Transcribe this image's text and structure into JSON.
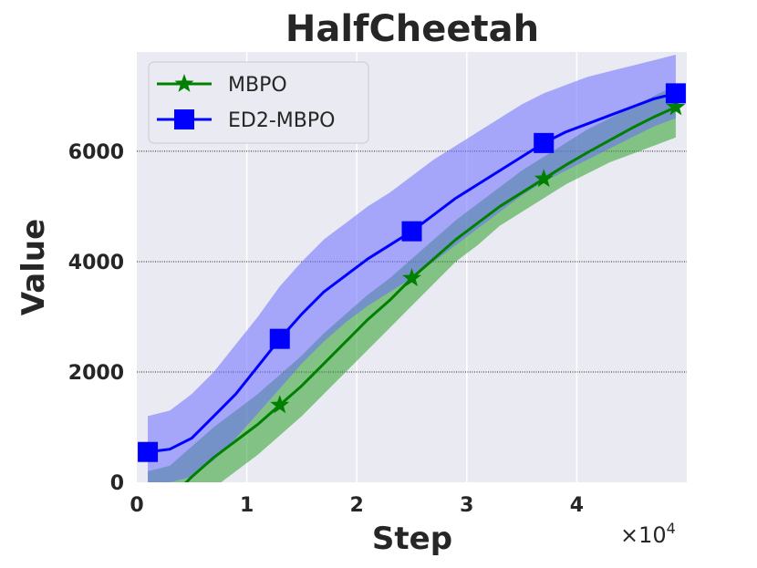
{
  "chart_data": {
    "type": "line",
    "title": "HalfCheetah",
    "xlabel": "Step",
    "ylabel": "Value",
    "x_multiplier_label": "×10",
    "x_multiplier_exp": "4",
    "xlim": [
      0,
      5.0
    ],
    "ylim": [
      0,
      7800
    ],
    "x_ticks": [
      0,
      1,
      2,
      3,
      4
    ],
    "x_tick_labels": [
      "0",
      "1",
      "2",
      "3",
      "4"
    ],
    "y_ticks": [
      0,
      2000,
      4000,
      6000
    ],
    "y_tick_labels": [
      "0",
      "2000",
      "4000",
      "6000"
    ],
    "grid": true,
    "legend_position": "top-left",
    "series": [
      {
        "name": "MBPO",
        "color": "#008000",
        "band_color": "#2ca02c",
        "marker": "star",
        "x": [
          0.1,
          0.3,
          0.5,
          0.7,
          0.9,
          1.1,
          1.3,
          1.5,
          1.7,
          1.9,
          2.1,
          2.3,
          2.5,
          2.7,
          2.9,
          3.1,
          3.3,
          3.5,
          3.7,
          3.9,
          4.1,
          4.3,
          4.5,
          4.7,
          4.9
        ],
        "mean": [
          -700,
          -300,
          100,
          450,
          750,
          1050,
          1400,
          1750,
          2150,
          2550,
          2950,
          3300,
          3700,
          4050,
          4400,
          4700,
          5000,
          5250,
          5500,
          5750,
          5980,
          6200,
          6420,
          6620,
          6800
        ],
        "upper": [
          200,
          300,
          650,
          1000,
          1300,
          1600,
          1950,
          2300,
          2700,
          3050,
          3400,
          3700,
          4050,
          4400,
          4750,
          5050,
          5350,
          5650,
          5900,
          6150,
          6400,
          6600,
          6800,
          7000,
          7200
        ],
        "lower": [
          -1600,
          -1000,
          -500,
          -100,
          200,
          500,
          850,
          1200,
          1600,
          2000,
          2400,
          2800,
          3200,
          3600,
          4000,
          4300,
          4650,
          4900,
          5150,
          5400,
          5600,
          5800,
          5950,
          6100,
          6250
        ],
        "markers_x": [
          1.3,
          2.5,
          3.7,
          4.9
        ],
        "markers_y": [
          1400,
          3700,
          5500,
          6800
        ]
      },
      {
        "name": "ED2-MBPO",
        "color": "#0000ff",
        "band_color": "#6b6bff",
        "marker": "square",
        "x": [
          0.1,
          0.3,
          0.5,
          0.7,
          0.9,
          1.1,
          1.3,
          1.5,
          1.7,
          1.9,
          2.1,
          2.3,
          2.5,
          2.7,
          2.9,
          3.1,
          3.3,
          3.5,
          3.7,
          3.9,
          4.1,
          4.3,
          4.5,
          4.7,
          4.9
        ],
        "mean": [
          550,
          600,
          800,
          1200,
          1600,
          2100,
          2600,
          3050,
          3450,
          3750,
          4050,
          4300,
          4550,
          4850,
          5150,
          5400,
          5650,
          5900,
          6150,
          6350,
          6500,
          6650,
          6800,
          6950,
          7050
        ],
        "upper": [
          1200,
          1300,
          1600,
          2000,
          2500,
          3000,
          3550,
          4000,
          4400,
          4700,
          5000,
          5250,
          5550,
          5850,
          6100,
          6350,
          6600,
          6850,
          7050,
          7200,
          7350,
          7450,
          7550,
          7650,
          7750
        ],
        "lower": [
          -100,
          0,
          100,
          400,
          800,
          1250,
          1700,
          2150,
          2550,
          2900,
          3200,
          3450,
          3700,
          4000,
          4300,
          4600,
          4900,
          5200,
          5450,
          5650,
          5850,
          6050,
          6250,
          6450,
          6600
        ],
        "markers_x": [
          0.1,
          1.3,
          2.5,
          3.7,
          4.9
        ],
        "markers_y": [
          550,
          2600,
          4550,
          6150,
          7050
        ]
      }
    ]
  }
}
